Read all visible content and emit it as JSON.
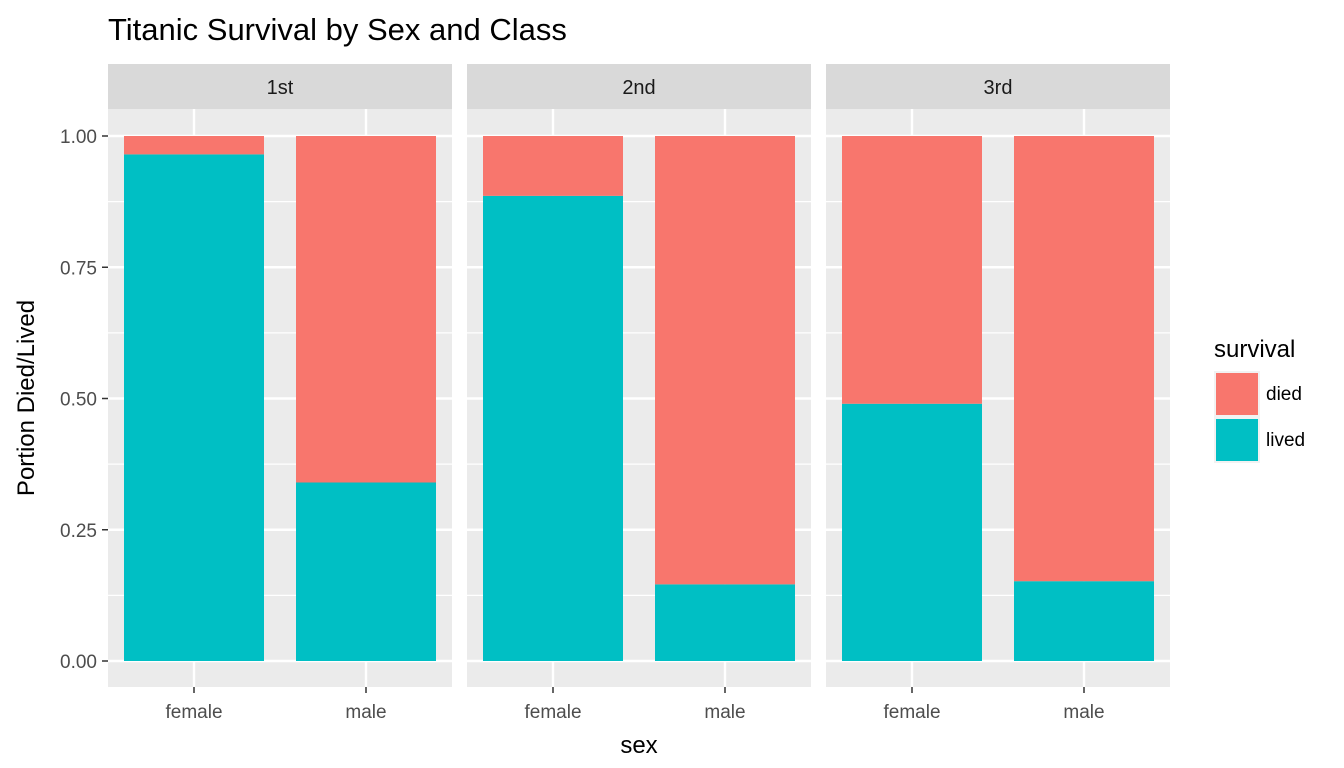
{
  "chart_data": {
    "type": "bar",
    "stacked": true,
    "title": "Titanic Survival by Sex and Class",
    "xlabel": "sex",
    "ylabel": "Portion Died/Lived",
    "ylim": [
      0,
      1
    ],
    "y_ticks": [
      "0.00",
      "0.25",
      "0.50",
      "0.75",
      "1.00"
    ],
    "grid": true,
    "legend": {
      "title": "survival",
      "placement": "right",
      "entries": [
        {
          "name": "died",
          "color": "#F8766D"
        },
        {
          "name": "lived",
          "color": "#00BFC4"
        }
      ]
    },
    "categories": [
      "female",
      "male"
    ],
    "facets": [
      {
        "label": "1st",
        "series": [
          {
            "name": "lived",
            "values": [
              0.965,
              0.34
            ]
          },
          {
            "name": "died",
            "values": [
              0.035,
              0.66
            ]
          }
        ]
      },
      {
        "label": "2nd",
        "series": [
          {
            "name": "lived",
            "values": [
              0.886,
              0.146
            ]
          },
          {
            "name": "died",
            "values": [
              0.114,
              0.854
            ]
          }
        ]
      },
      {
        "label": "3rd",
        "series": [
          {
            "name": "lived",
            "values": [
              0.49,
              0.152
            ]
          },
          {
            "name": "died",
            "values": [
              0.51,
              0.848
            ]
          }
        ]
      }
    ]
  }
}
